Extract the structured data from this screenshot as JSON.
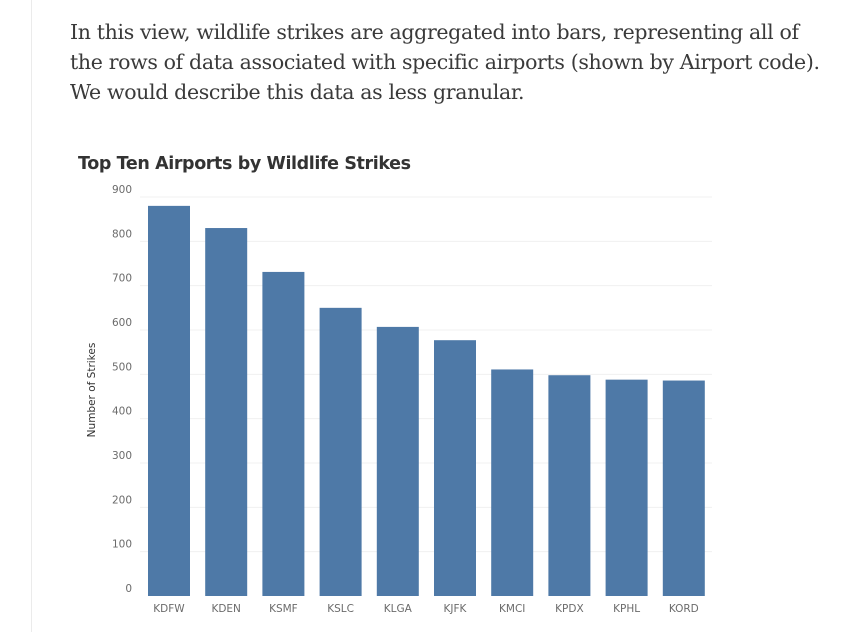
{
  "article": {
    "lines": [
      "In this view, wildlife strikes are aggregated into bars, representing all of",
      "the rows of data associated with specific airports (shown by Airport code).",
      "We would describe this data as less granular."
    ]
  },
  "chart_data": {
    "type": "bar",
    "title": "Top Ten Airports by Wildlife Strikes",
    "xlabel": "",
    "ylabel": "Number of Strikes",
    "categories": [
      "KDFW",
      "KDEN",
      "KSMF",
      "KSLC",
      "KLGA",
      "KJFK",
      "KMCI",
      "KPDX",
      "KPHL",
      "KORD"
    ],
    "values": [
      880,
      830,
      731,
      650,
      607,
      577,
      511,
      498,
      488,
      486
    ],
    "ylim": [
      0,
      900
    ],
    "yticks": [
      0,
      100,
      200,
      300,
      400,
      500,
      600,
      700,
      800,
      900
    ],
    "grid": true,
    "legend": "none",
    "bar_color": "#4e79a7"
  }
}
